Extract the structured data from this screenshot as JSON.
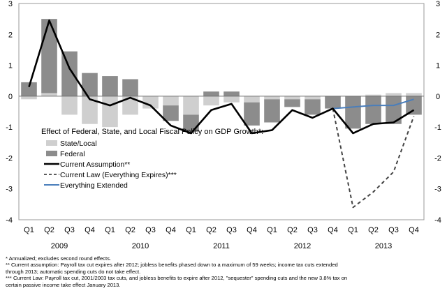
{
  "chart_data": {
    "type": "bar",
    "legend_title": "Effect of Federal, State, and Local Fiscal Policy on GDP Growth*:",
    "quarters": [
      "Q1",
      "Q2",
      "Q3",
      "Q4",
      "Q1",
      "Q2",
      "Q3",
      "Q4",
      "Q1",
      "Q2",
      "Q3",
      "Q4",
      "Q1",
      "Q2",
      "Q3",
      "Q4",
      "Q1",
      "Q2",
      "Q3",
      "Q4"
    ],
    "years": [
      "2009",
      "2010",
      "2011",
      "2012",
      "2013"
    ],
    "ylim": [
      -4,
      3
    ],
    "yticks": [
      "3",
      "2",
      "1",
      "0",
      "-1",
      "-2",
      "-3",
      "-4"
    ],
    "grid": false,
    "legend_position": "bottom-left inside plot",
    "series": [
      {
        "name": "State/Local",
        "kind": "bar",
        "color": "#cfcfcf",
        "values": [
          -0.1,
          0.1,
          -0.6,
          -0.9,
          -1.0,
          -0.6,
          -0.4,
          -0.3,
          -0.6,
          -0.3,
          -0.2,
          -0.2,
          -0.1,
          -0.1,
          -0.1,
          0.0,
          0.0,
          0.05,
          0.1,
          0.1
        ]
      },
      {
        "name": "Federal",
        "kind": "bar",
        "color": "#8c8c8c",
        "values": [
          0.45,
          2.4,
          1.45,
          0.75,
          0.65,
          0.55,
          0.0,
          -0.5,
          -0.55,
          0.15,
          0.15,
          -0.75,
          -0.75,
          -0.25,
          -0.5,
          -0.4,
          -1.05,
          -0.9,
          -0.9,
          -0.6
        ]
      },
      {
        "name": "Current Assumption**",
        "kind": "line",
        "color": "#000000",
        "dash": "solid",
        "values": [
          0.3,
          2.45,
          0.9,
          -0.1,
          -0.3,
          -0.05,
          -0.3,
          -0.95,
          -1.2,
          -0.45,
          -0.25,
          -1.2,
          -1.1,
          -0.45,
          -0.7,
          -0.4,
          -1.2,
          -0.9,
          -0.85,
          -0.45
        ]
      },
      {
        "name": "Current Law (Everything Expires)***",
        "kind": "line",
        "color": "#444444",
        "dash": "dashed",
        "x_index": [
          15,
          16,
          17,
          18,
          19
        ],
        "values": [
          -0.4,
          -3.6,
          -3.1,
          -2.45,
          -0.65
        ]
      },
      {
        "name": "Everything Extended",
        "kind": "line",
        "color": "#4a7ebb",
        "dash": "solid",
        "x_index": [
          15,
          16,
          17,
          18,
          19
        ],
        "values": [
          -0.4,
          -0.35,
          -0.3,
          -0.3,
          -0.1
        ]
      }
    ]
  },
  "notes": [
    "* Annualized; excludes second round effects.",
    "** Current assumption: Payroll tax cut expires after 2012; jobless benefits phased down to a maximum of 59 weeks; income tax cuts extended",
    "through 2013; automatic spending cuts do not take effect.",
    "*** Current Law: Payroll tax cut, 2001/2003 tax cuts, and jobless benefits to expire after 2012, \"sequester\" spending cuts and the new 3.8% tax on",
    "certain passive income take effect January 2013."
  ]
}
